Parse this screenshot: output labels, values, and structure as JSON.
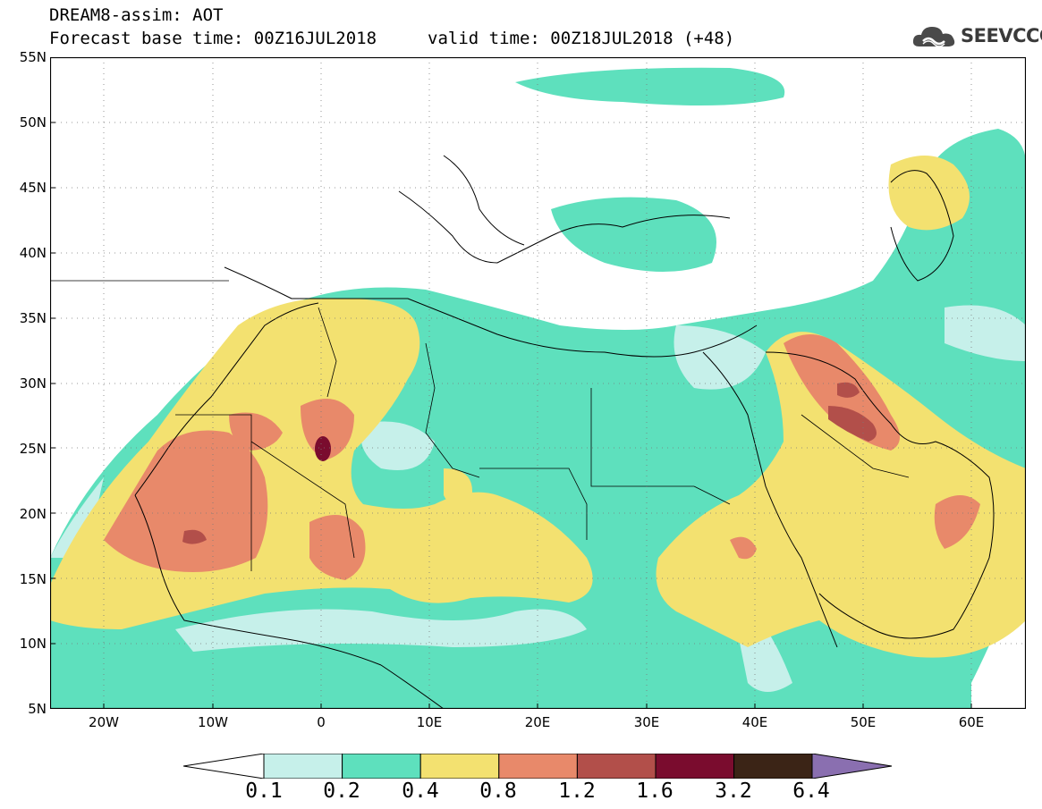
{
  "header": {
    "title": "DREAM8-assim: AOT",
    "base_time": "Forecast base time: 00Z16JUL2018",
    "valid_time": "valid time: 00Z18JUL2018 (+48)",
    "logo_text": "SEEVCCC",
    "logo_icon": "cloud-logo-icon"
  },
  "map": {
    "projection": "lat-lon",
    "lon_range": [
      -25,
      65
    ],
    "lat_range": [
      5,
      55
    ],
    "lat_labels": [
      "55N",
      "50N",
      "45N",
      "40N",
      "35N",
      "30N",
      "25N",
      "20N",
      "15N",
      "10N",
      "5N"
    ],
    "lon_labels": [
      "20W",
      "10W",
      "0",
      "10E",
      "20E",
      "30E",
      "40E",
      "50E",
      "60E"
    ],
    "grid": "dotted"
  },
  "colorbar": {
    "labels": [
      "0.1",
      "0.2",
      "0.4",
      "0.8",
      "1.2",
      "1.6",
      "3.2",
      "6.4"
    ],
    "colors": [
      "#c6f0ea",
      "#5ee0bd",
      "#f3e170",
      "#e8896a",
      "#b24f4a",
      "#7a0c2e",
      "#3b2416",
      "#8a6fb0"
    ]
  }
}
